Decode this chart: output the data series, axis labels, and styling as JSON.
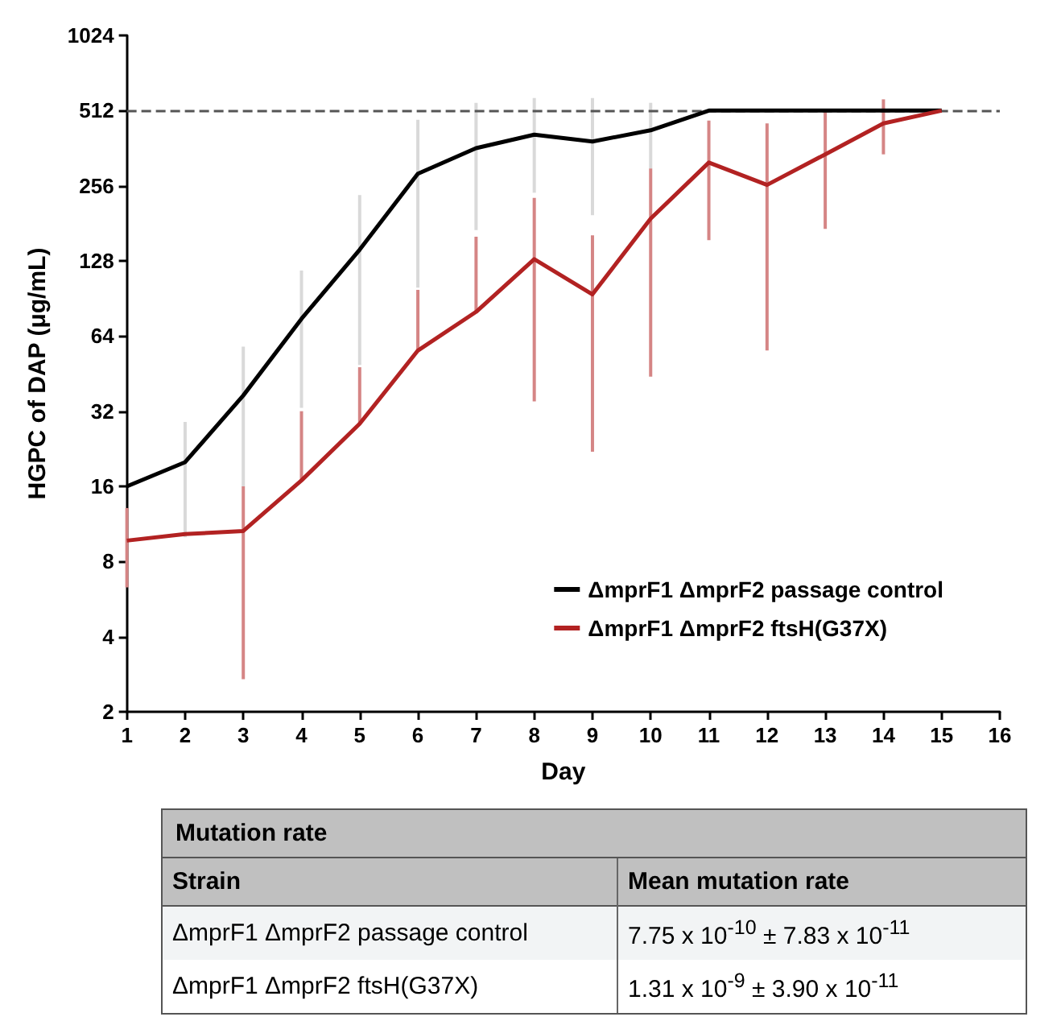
{
  "chart_data": [
    {
      "type": "line",
      "xlabel": "Day",
      "ylabel": "HGPC of DAP (μg/mL)",
      "x": [
        1,
        2,
        3,
        4,
        5,
        6,
        7,
        8,
        9,
        10,
        11,
        12,
        13,
        14,
        15
      ],
      "series": [
        {
          "name": "ΔmprF1 ΔmprF2 passage control",
          "color": "#000000",
          "values": [
            16,
            20,
            37,
            75,
            142,
            286,
            362,
            410,
            385,
            427,
            512,
            512,
            512,
            512,
            512
          ],
          "errors": [
            null,
            [
              10,
              29
            ],
            [
              16,
              58
            ],
            [
              33,
              117
            ],
            [
              49,
              235
            ],
            [
              100,
              470
            ],
            [
              170,
              550
            ],
            [
              240,
              575
            ],
            [
              195,
              575
            ],
            [
              300,
              550
            ],
            null,
            null,
            null,
            null,
            null
          ]
        },
        {
          "name": "ΔmprF1 ΔmprF2 ftsH(G37X)",
          "color": "#b22222",
          "values": [
            9.7,
            10.3,
            10.6,
            16.9,
            28.5,
            56,
            80,
            130,
            94,
            189,
            317,
            258,
            342,
            455,
            512
          ],
          "errors": [
            [
              6.3,
              13.1
            ],
            null,
            [
              2.7,
              16
            ],
            [
              16.9,
              32
            ],
            [
              28.5,
              48
            ],
            [
              56,
              98
            ],
            [
              80,
              160
            ],
            [
              35,
              229
            ],
            [
              22,
              162
            ],
            [
              44,
              300
            ],
            [
              155,
              467
            ],
            [
              56,
              455
            ],
            [
              172,
              512
            ],
            [
              342,
              568
            ],
            null
          ]
        }
      ],
      "xlim": [
        1,
        16
      ],
      "xticks": [
        1,
        2,
        3,
        4,
        5,
        6,
        7,
        8,
        9,
        10,
        11,
        12,
        13,
        14,
        15,
        16
      ],
      "ylim": [
        2,
        1024
      ],
      "yticks": [
        2,
        4,
        8,
        16,
        32,
        64,
        128,
        256,
        512,
        1024
      ],
      "log": "y",
      "grid": false,
      "legend": "bottom right",
      "marker": "none",
      "line_style": "solid",
      "ref_lines": [
        {
          "axis": "y",
          "value": 512,
          "label": null,
          "color": "#555555",
          "line_style": "dashed"
        }
      ]
    },
    {
      "type": "other",
      "title": "Mutation rate",
      "annotations": [
        "Strain",
        "Mean mutation rate",
        "ΔmprF1 ΔmprF2 passage control",
        "7.75 x 10$^{-10}$ ± 7.83 x 10$^{-11}$",
        "ΔmprF1 ΔmprF2 ftsH(G37X)",
        "1.31 x 10$^{-9}$ ± 3.90 x 10$^{-11}$"
      ]
    }
  ]
}
